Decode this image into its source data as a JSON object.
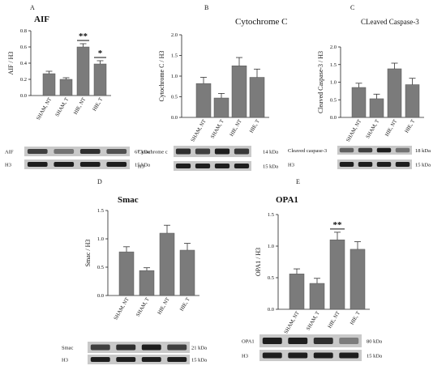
{
  "panels": [
    {
      "letter": "A",
      "title": "AIF",
      "title_bold": true,
      "ylabel": "AIF / H3",
      "ylim": [
        0,
        0.8
      ],
      "yticks": [
        "0.0",
        "0.2",
        "0.4",
        "0.6",
        "0.8"
      ],
      "categories": [
        "SHAM, NT",
        "SHAM, T",
        "HIE, NT",
        "HIE, T"
      ],
      "values": [
        0.27,
        0.2,
        0.6,
        0.39
      ],
      "errors": [
        0.03,
        0.02,
        0.04,
        0.04
      ],
      "significance": [
        {
          "index": 2,
          "label": "**"
        },
        {
          "index": 3,
          "label": "*"
        }
      ],
      "blots": [
        {
          "label": "AIF",
          "kda": "67 kDa"
        },
        {
          "label": "H3",
          "kda": "15  kDa"
        }
      ]
    },
    {
      "letter": "B",
      "title": "Cytochrome C",
      "title_bold": false,
      "ylabel": "Cytochrome C / H3",
      "ylim": [
        0,
        2.0
      ],
      "yticks": [
        "0.0",
        "0.5",
        "1.0",
        "1.5",
        "2.0"
      ],
      "categories": [
        "SHAM, NT",
        "SHAM, T",
        "HIE, NT",
        "HIE, T"
      ],
      "values": [
        0.82,
        0.47,
        1.25,
        0.97
      ],
      "errors": [
        0.15,
        0.11,
        0.2,
        0.2
      ],
      "significance": [],
      "blots": [
        {
          "label": "Cytochrome c",
          "kda": "14 kDa"
        },
        {
          "label": "H3",
          "kda": "15 kDa"
        }
      ]
    },
    {
      "letter": "C",
      "title": "CLeaved Caspase-3",
      "title_bold": false,
      "ylabel": "Cleaved Caspase-3 / H3",
      "ylim": [
        0,
        2.0
      ],
      "yticks": [
        "0.0",
        "0.5",
        "1.0",
        "1.5",
        "2.0"
      ],
      "categories": [
        "SHAM, NT",
        "SHAM, T",
        "HIE, NT",
        "HIE, T"
      ],
      "values": [
        0.85,
        0.53,
        1.38,
        0.93
      ],
      "errors": [
        0.12,
        0.13,
        0.16,
        0.18
      ],
      "significance": [],
      "blots": [
        {
          "label": "Cleaved caspase-3",
          "kda": "18 kDa"
        },
        {
          "label": "H3",
          "kda": "15  kDa"
        }
      ]
    },
    {
      "letter": "D",
      "title": "Smac",
      "title_bold": true,
      "ylabel": "Smac / H3",
      "ylim": [
        0,
        1.5
      ],
      "yticks": [
        "0.0",
        "0.5",
        "1.0",
        "1.5"
      ],
      "categories": [
        "SHAM, NT",
        "SHAM, T",
        "HIE, NT",
        "HIE, T"
      ],
      "values": [
        0.77,
        0.44,
        1.1,
        0.8
      ],
      "errors": [
        0.09,
        0.05,
        0.14,
        0.12
      ],
      "significance": [],
      "blots": [
        {
          "label": "Smac",
          "kda": "21 kDa"
        },
        {
          "label": "H3",
          "kda": "15 kDa"
        }
      ]
    },
    {
      "letter": "E",
      "title": "OPA1",
      "title_bold": true,
      "ylabel": "OPA1 / H3",
      "ylim": [
        0,
        1.5
      ],
      "yticks": [
        "0.0",
        "0.5",
        "1.0",
        "1.5"
      ],
      "categories": [
        "SHAM, NT",
        "SHAM, T",
        "HIE, NT",
        "HIE, T"
      ],
      "values": [
        0.56,
        0.41,
        1.1,
        0.95
      ],
      "errors": [
        0.08,
        0.08,
        0.12,
        0.12
      ],
      "significance": [
        {
          "index": 2,
          "label": "**"
        }
      ],
      "blots": [
        {
          "label": "OPA1",
          "kda": "80 kDa"
        },
        {
          "label": "H3",
          "kda": "15 kDa"
        }
      ]
    }
  ],
  "colors": {
    "bar": "#7b7b7b",
    "bar_edge": "#555555",
    "blot_bg": "#c9c9c9",
    "band": "#1e1e1e"
  }
}
